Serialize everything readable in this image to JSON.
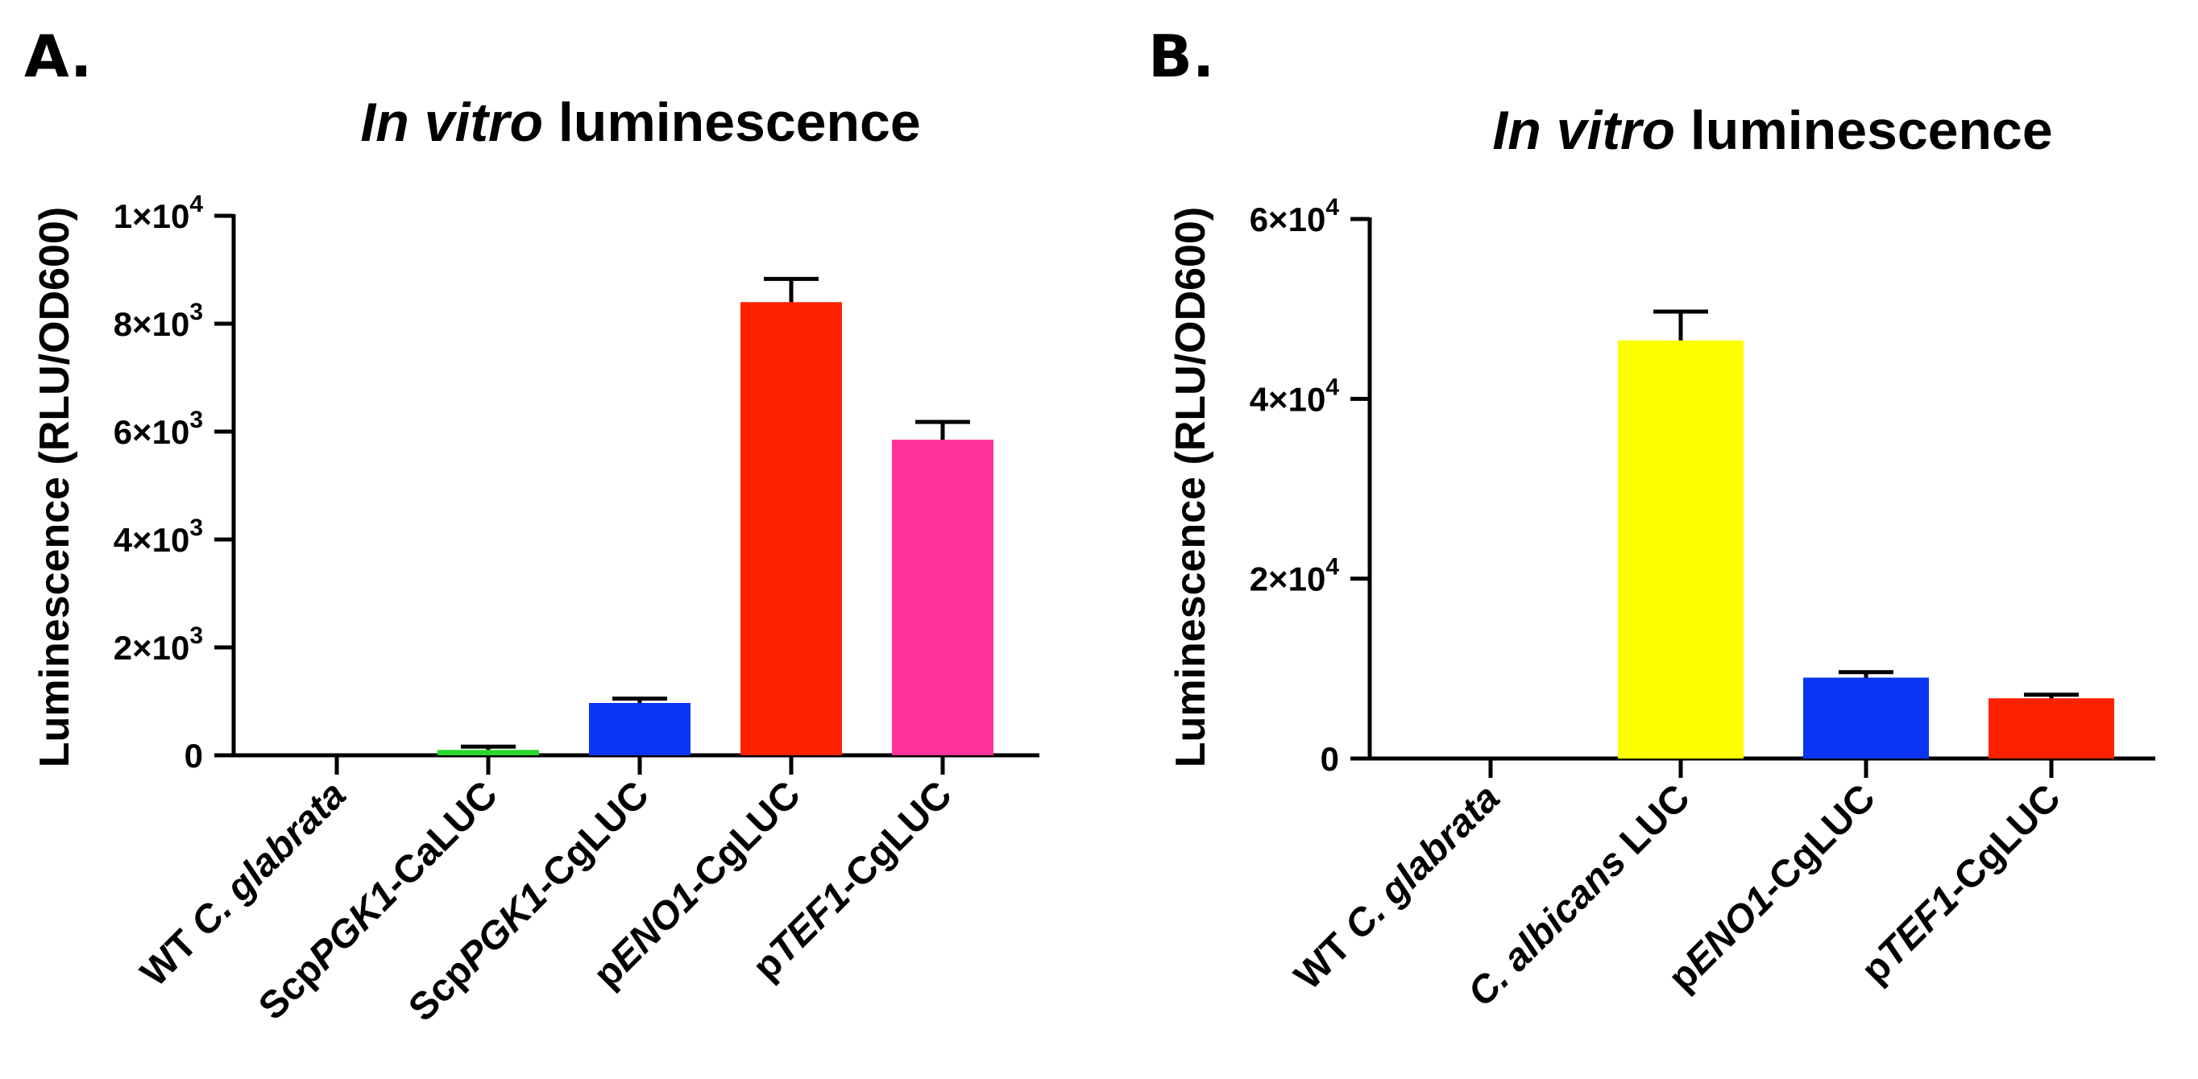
{
  "figure_panels": [
    {
      "letter": "A."
    },
    {
      "letter": "B."
    }
  ],
  "chart_data": [
    {
      "type": "bar",
      "panel": "A.",
      "title_italic": "In vitro",
      "title_rest": " luminescence",
      "ylabel": "Luminescence (RLU/OD600)",
      "ylim": [
        0,
        10000
      ],
      "yticks": [
        {
          "value": 0,
          "base": "0",
          "exp": ""
        },
        {
          "value": 2000,
          "base": "2×10",
          "exp": "3"
        },
        {
          "value": 4000,
          "base": "4×10",
          "exp": "3"
        },
        {
          "value": 6000,
          "base": "6×10",
          "exp": "3"
        },
        {
          "value": 8000,
          "base": "8×10",
          "exp": "3"
        },
        {
          "value": 10000,
          "base": "1×10",
          "exp": "4"
        }
      ],
      "categories": [
        {
          "label": "WT C. glabrata",
          "parts": [
            {
              "t": "WT ",
              "i": false
            },
            {
              "t": "C. glabrata",
              "i": true
            }
          ]
        },
        {
          "label": "ScpPGK1-CaLUC",
          "parts": [
            {
              "t": "Scp",
              "i": false
            },
            {
              "t": "PGK1",
              "i": true
            },
            {
              "t": "-CaLUC",
              "i": false
            }
          ]
        },
        {
          "label": "ScpPGK1-CgLUC",
          "parts": [
            {
              "t": "Scp",
              "i": false
            },
            {
              "t": "PGK1",
              "i": true
            },
            {
              "t": "-CgLUC",
              "i": false
            }
          ]
        },
        {
          "label": "pENO1-CgLUC",
          "parts": [
            {
              "t": "p",
              "i": false
            },
            {
              "t": "ENO1",
              "i": true
            },
            {
              "t": "-CgLUC",
              "i": false
            }
          ]
        },
        {
          "label": "pTEF1-CgLUC",
          "parts": [
            {
              "t": "p",
              "i": false
            },
            {
              "t": "TEF1",
              "i": true
            },
            {
              "t": "-CgLUC",
              "i": false
            }
          ]
        }
      ],
      "values": [
        0,
        100,
        970,
        8400,
        5850
      ],
      "errors": [
        0,
        60,
        80,
        430,
        330
      ],
      "colors": [
        "#1a1aff",
        "#2bd62b",
        "#0a35f5",
        "#ff2200",
        "#ff3399"
      ]
    },
    {
      "type": "bar",
      "panel": "B.",
      "title_italic": "In vitro",
      "title_rest": " luminescence",
      "ylabel": "Luminescence (RLU/OD600)",
      "ylim": [
        0,
        60000
      ],
      "yticks": [
        {
          "value": 0,
          "base": "0",
          "exp": ""
        },
        {
          "value": 20000,
          "base": "2×10",
          "exp": "4"
        },
        {
          "value": 40000,
          "base": "4×10",
          "exp": "4"
        },
        {
          "value": 60000,
          "base": "6×10",
          "exp": "4"
        }
      ],
      "categories": [
        {
          "label": "WT C. glabrata",
          "parts": [
            {
              "t": "WT ",
              "i": false
            },
            {
              "t": "C. glabrata",
              "i": true
            }
          ]
        },
        {
          "label": "C. albicans LUC",
          "parts": [
            {
              "t": "C. albicans",
              "i": true
            },
            {
              "t": " LUC",
              "i": false
            }
          ]
        },
        {
          "label": "pENO1-CgLUC",
          "parts": [
            {
              "t": "p",
              "i": false
            },
            {
              "t": "ENO1",
              "i": true
            },
            {
              "t": "-CgLUC",
              "i": false
            }
          ]
        },
        {
          "label": "pTEF1-CgLUC",
          "parts": [
            {
              "t": "p",
              "i": false
            },
            {
              "t": "TEF1",
              "i": true
            },
            {
              "t": "-CgLUC",
              "i": false
            }
          ]
        }
      ],
      "values": [
        0,
        46500,
        9000,
        6700
      ],
      "errors": [
        0,
        3200,
        600,
        400
      ],
      "colors": [
        "#1a1aff",
        "#ffff00",
        "#0a35f5",
        "#ff2200"
      ]
    }
  ]
}
